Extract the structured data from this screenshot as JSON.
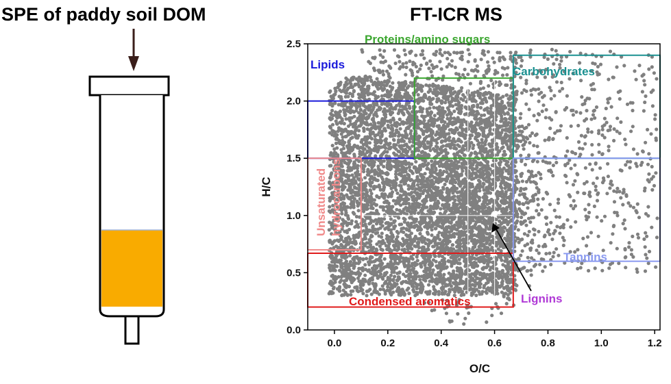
{
  "left_panel": {
    "title": "SPE of paddy soil DOM",
    "colors": {
      "arrow": "#3a1e1a",
      "sorbent": "#f9ab00",
      "outline": "#000000"
    }
  },
  "chart_data": {
    "type": "scatter",
    "title": "FT-ICR MS",
    "xlabel": "O/C",
    "ylabel": "H/C",
    "xlim": [
      -0.1,
      1.22
    ],
    "ylim": [
      0.0,
      2.5
    ],
    "xticks": [
      0.0,
      0.2,
      0.4,
      0.6,
      0.8,
      1.0,
      1.2
    ],
    "xtick_labels": [
      "0.0",
      "0.2",
      "0.4",
      "0.6",
      "0.8",
      "1.0",
      "1.2"
    ],
    "yticks": [
      0.0,
      0.5,
      1.0,
      1.5,
      2.0,
      2.5
    ],
    "ytick_labels": [
      "0.0",
      "0.5",
      "1.0",
      "1.5",
      "2.0",
      "2.5"
    ],
    "point_color": "#808080",
    "scatter_note": "dense cloud of molecular formulas; highest density 0.0-0.67 O/C, 0.3-2.2 H/C, sparse points to 1.2 O/C",
    "regions": [
      {
        "name": "Lipids",
        "label": "Lipids",
        "color": "#1a1adb",
        "x": [
          -0.1,
          0.3
        ],
        "y": [
          1.5,
          2.0
        ]
      },
      {
        "name": "Proteins/amino sugars",
        "label": "Proteins/amino sugars",
        "color": "#3aa62e",
        "x": [
          0.3,
          0.67
        ],
        "y": [
          1.5,
          2.2
        ]
      },
      {
        "name": "Carbohydrates",
        "label": "Carbohydrates",
        "color": "#1a9090",
        "x": [
          0.67,
          1.22
        ],
        "y": [
          1.5,
          2.4
        ]
      },
      {
        "name": "Unsaturated hydrocarbons",
        "label_line1": "Unsaturated",
        "label_line2": "hydrocarbons",
        "color": "#f08a8a",
        "x": [
          -0.1,
          0.1
        ],
        "y": [
          0.7,
          1.5
        ]
      },
      {
        "name": "Condensed aromatics",
        "label": "Condensed aromatics",
        "color": "#e01a1a",
        "x": [
          -0.1,
          0.67
        ],
        "y": [
          0.2,
          0.67
        ]
      },
      {
        "name": "Tannins",
        "label": "Tannins",
        "color": "#8a9af0",
        "x": [
          0.67,
          1.22
        ],
        "y": [
          0.6,
          1.5
        ]
      }
    ],
    "annotations": [
      {
        "text": "Lignins",
        "color": "#b03ad6",
        "arrow_to": [
          0.59,
          0.95
        ],
        "arrow_color": "#000000"
      }
    ]
  }
}
